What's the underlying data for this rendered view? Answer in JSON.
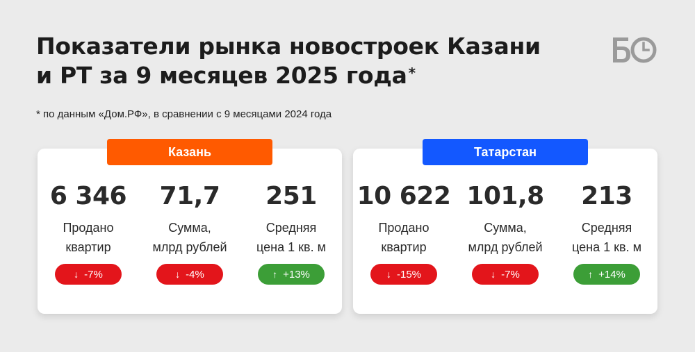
{
  "title_line1": "Показатели рынка новостроек Казани",
  "title_line2": "и РТ за 9 месяцев 2025 года",
  "title_mark": "*",
  "logo_text": "БО",
  "footnote": "* по данным «Дом.РФ», в сравнении с 9 месяцами 2024 года",
  "regions": [
    {
      "name": "Казань",
      "color": "#ff5a00",
      "metrics": [
        {
          "value": "6 346",
          "label_line1": "Продано",
          "label_line2": "квартир",
          "change": "-7%",
          "direction": "down",
          "arrow": "↓"
        },
        {
          "value": "71,7",
          "label_line1": "Сумма,",
          "label_line2": "млрд рублей",
          "change": "-4%",
          "direction": "down",
          "arrow": "↓"
        },
        {
          "value": "251",
          "label_line1": "Средняя",
          "label_line2": "цена 1 кв. м",
          "change": "+13%",
          "direction": "up",
          "arrow": "↑"
        }
      ]
    },
    {
      "name": "Татарстан",
      "color": "#1358ff",
      "metrics": [
        {
          "value": "10 622",
          "label_line1": "Продано",
          "label_line2": "квартир",
          "change": "-15%",
          "direction": "down",
          "arrow": "↓"
        },
        {
          "value": "101,8",
          "label_line1": "Сумма,",
          "label_line2": "млрд рублей",
          "change": "-7%",
          "direction": "down",
          "arrow": "↓"
        },
        {
          "value": "213",
          "label_line1": "Средняя",
          "label_line2": "цена 1 кв. м",
          "change": "+14%",
          "direction": "up",
          "arrow": "↑"
        }
      ]
    }
  ],
  "colors": {
    "down": "#e3151b",
    "up": "#3c9e37",
    "background": "#ebebeb"
  }
}
